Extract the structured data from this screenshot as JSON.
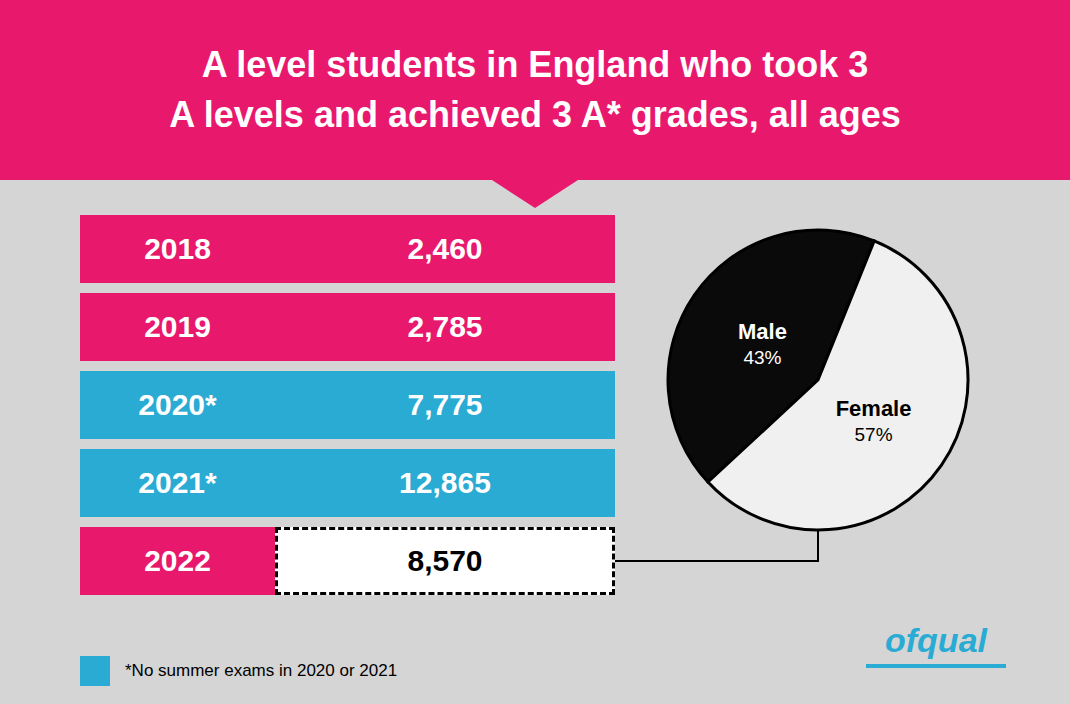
{
  "chart_data": [
    {
      "type": "table",
      "title": "A level students in England who took 3\nA levels and achieved 3 A* grades, all ages",
      "categories": [
        "2018",
        "2019",
        "2020*",
        "2021*",
        "2022"
      ],
      "values": [
        2460,
        2785,
        7775,
        12865,
        8570
      ],
      "value_labels": [
        "2,460",
        "2,785",
        "7,775",
        "12,865",
        "8,570"
      ],
      "colors": [
        "#E8186D",
        "#E8186D",
        "#29ABD4",
        "#29ABD4",
        "#E8186D"
      ],
      "line_style": [
        "solid",
        "solid",
        "solid",
        "solid",
        "dashed"
      ],
      "annotations": [
        {
          "text": "*No summer exams in 2020 or 2021",
          "color": "#29ABD4"
        },
        {
          "text": "ofqual",
          "color": "#29ABD4"
        }
      ]
    },
    {
      "type": "pie",
      "categories": [
        "Male",
        "Female"
      ],
      "values": [
        43,
        57
      ],
      "value_labels": [
        "43%",
        "57%"
      ],
      "colors": [
        "#0A0A0A",
        "#F0F0F0"
      ]
    }
  ]
}
